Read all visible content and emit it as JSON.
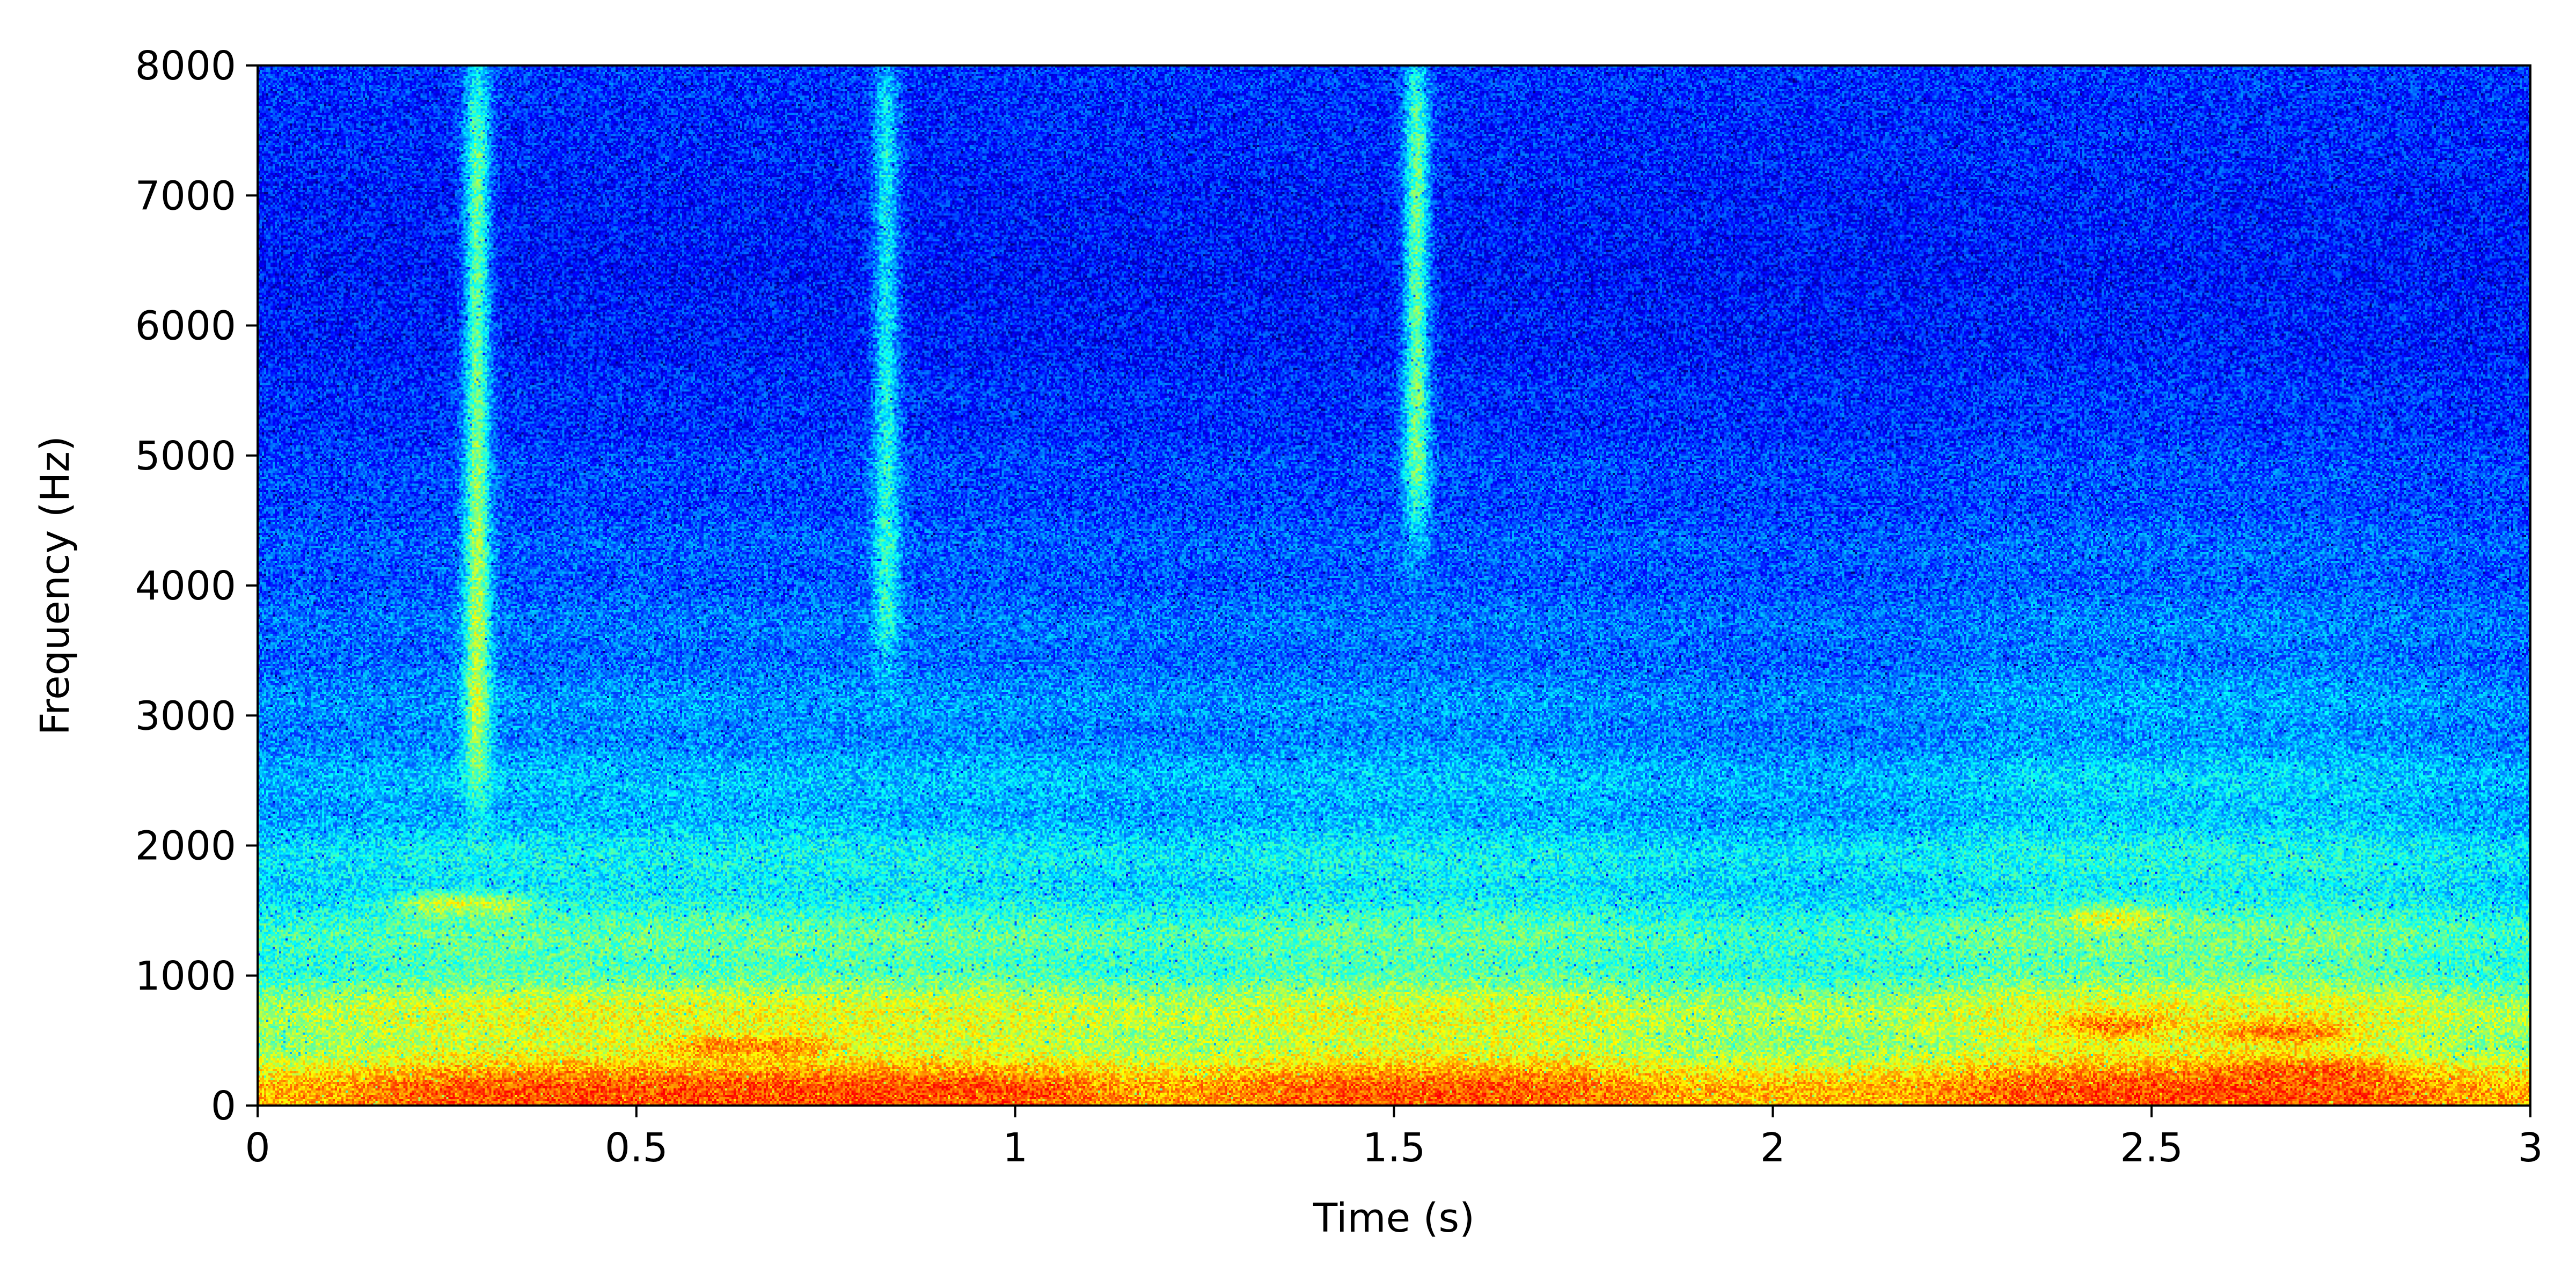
{
  "chart_data": {
    "type": "heatmap",
    "title": "",
    "xlabel": "Time (s)",
    "ylabel": "Frequency (Hz)",
    "xlim": [
      0,
      3
    ],
    "ylim": [
      0,
      8000
    ],
    "x_ticks": [
      {
        "value": 0,
        "label": "0"
      },
      {
        "value": 0.5,
        "label": "0.5"
      },
      {
        "value": 1,
        "label": "1"
      },
      {
        "value": 1.5,
        "label": "1.5"
      },
      {
        "value": 2,
        "label": "2"
      },
      {
        "value": 2.5,
        "label": "2.5"
      },
      {
        "value": 3,
        "label": "3"
      }
    ],
    "y_ticks": [
      {
        "value": 0,
        "label": "0"
      },
      {
        "value": 1000,
        "label": "1000"
      },
      {
        "value": 2000,
        "label": "2000"
      },
      {
        "value": 3000,
        "label": "3000"
      },
      {
        "value": 4000,
        "label": "4000"
      },
      {
        "value": 5000,
        "label": "5000"
      },
      {
        "value": 6000,
        "label": "6000"
      },
      {
        "value": 7000,
        "label": "7000"
      },
      {
        "value": 8000,
        "label": "8000"
      }
    ],
    "colormap": "jet",
    "colormap_stops": [
      "#00007f",
      "#0000ff",
      "#007fff",
      "#00ffff",
      "#7fff7f",
      "#ffff00",
      "#ff7f00",
      "#ff0000"
    ],
    "grid": false,
    "legend": "none",
    "features": [
      {
        "kind": "broadband_burst",
        "time_s": 0.29,
        "freq_range_hz": [
          2500,
          8000
        ],
        "intensity": 0.62
      },
      {
        "kind": "broadband_burst",
        "time_s": 0.83,
        "freq_range_hz": [
          3500,
          8000
        ],
        "intensity": 0.5
      },
      {
        "kind": "broadband_burst",
        "time_s": 1.53,
        "freq_range_hz": [
          4500,
          8000
        ],
        "intensity": 0.62
      },
      {
        "kind": "voiced_region",
        "time_range_s": [
          0.15,
          1.1
        ],
        "freq_range_hz": [
          0,
          1800
        ],
        "intensity": 0.72
      },
      {
        "kind": "voiced_region",
        "time_range_s": [
          1.3,
          1.8
        ],
        "freq_range_hz": [
          0,
          2000
        ],
        "intensity": 0.68
      },
      {
        "kind": "voiced_region",
        "time_range_s": [
          2.25,
          2.85
        ],
        "freq_range_hz": [
          0,
          3000
        ],
        "intensity": 0.75
      },
      {
        "kind": "formant",
        "time_range_s": [
          0.55,
          0.75
        ],
        "freq_hz": 450,
        "intensity": 0.9
      },
      {
        "kind": "formant",
        "time_range_s": [
          0.85,
          1.05
        ],
        "freq_hz": 80,
        "intensity": 0.88
      },
      {
        "kind": "formant",
        "time_range_s": [
          2.4,
          2.5
        ],
        "freq_hz": 600,
        "intensity": 0.9
      },
      {
        "kind": "formant",
        "time_range_s": [
          2.6,
          2.75
        ],
        "freq_hz": 550,
        "intensity": 0.9
      },
      {
        "kind": "formant",
        "time_range_s": [
          2.6,
          2.8
        ],
        "freq_hz": 280,
        "intensity": 0.88
      },
      {
        "kind": "formant",
        "time_range_s": [
          0.2,
          0.35
        ],
        "freq_hz": 1550,
        "intensity": 0.7
      },
      {
        "kind": "formant",
        "time_range_s": [
          2.4,
          2.5
        ],
        "freq_hz": 1450,
        "intensity": 0.72
      }
    ]
  }
}
